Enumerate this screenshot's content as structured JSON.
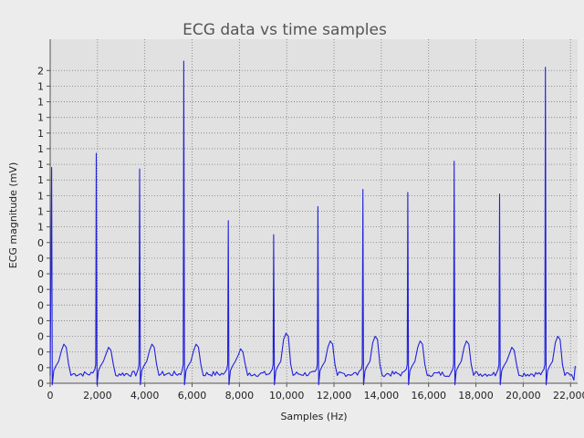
{
  "chart_data": {
    "type": "line",
    "title": "ECG data vs time samples",
    "xlabel": "Samples (Hz)",
    "ylabel": "ECG magnitude (mV)",
    "xlim": [
      0,
      22300
    ],
    "ylim": [
      0,
      2.2
    ],
    "grid": true,
    "legend": "none",
    "colors": {
      "series": "#2020dd",
      "plot_bg": "#e1e1e1",
      "page_bg": "#ececec",
      "grid": "#7a7a7a"
    },
    "x_ticks": [
      {
        "value": 0,
        "label": "0"
      },
      {
        "value": 2000,
        "label": "2,000"
      },
      {
        "value": 4000,
        "label": "4,000"
      },
      {
        "value": 6000,
        "label": "6,000"
      },
      {
        "value": 8000,
        "label": "8,000"
      },
      {
        "value": 10000,
        "label": "10,000"
      },
      {
        "value": 12000,
        "label": "12,000"
      },
      {
        "value": 14000,
        "label": "14,000"
      },
      {
        "value": 16000,
        "label": "16,000"
      },
      {
        "value": 18000,
        "label": "18,000"
      },
      {
        "value": 20000,
        "label": "20,000"
      },
      {
        "value": 22000,
        "label": "22,000"
      }
    ],
    "y_ticks": [
      {
        "value": 0.0,
        "label": "0"
      },
      {
        "value": 0.1,
        "label": "0"
      },
      {
        "value": 0.2,
        "label": "0"
      },
      {
        "value": 0.3,
        "label": "0"
      },
      {
        "value": 0.4,
        "label": "0"
      },
      {
        "value": 0.5,
        "label": "0"
      },
      {
        "value": 0.6,
        "label": "0"
      },
      {
        "value": 0.7,
        "label": "0"
      },
      {
        "value": 0.8,
        "label": "0"
      },
      {
        "value": 0.9,
        "label": "0"
      },
      {
        "value": 1.0,
        "label": "1"
      },
      {
        "value": 1.1,
        "label": "1"
      },
      {
        "value": 1.2,
        "label": "1"
      },
      {
        "value": 1.3,
        "label": "1"
      },
      {
        "value": 1.4,
        "label": "1"
      },
      {
        "value": 1.5,
        "label": "1"
      },
      {
        "value": 1.6,
        "label": "1"
      },
      {
        "value": 1.7,
        "label": "1"
      },
      {
        "value": 1.8,
        "label": "1"
      },
      {
        "value": 1.9,
        "label": "1"
      },
      {
        "value": 2.0,
        "label": "2"
      }
    ],
    "series": [
      {
        "beats": [
          {
            "r": 60,
            "peak": 1.38
          },
          {
            "r": 1950,
            "peak": 1.47
          },
          {
            "r": 3780,
            "peak": 1.37
          },
          {
            "r": 5650,
            "peak": 2.06
          },
          {
            "r": 7530,
            "peak": 1.04
          },
          {
            "r": 9450,
            "peak": 0.95
          },
          {
            "r": 11320,
            "peak": 1.13
          },
          {
            "r": 13220,
            "peak": 1.24
          },
          {
            "r": 15120,
            "peak": 1.22
          },
          {
            "r": 17080,
            "peak": 1.42
          },
          {
            "r": 19000,
            "peak": 1.21
          },
          {
            "r": 20940,
            "peak": 2.02
          }
        ],
        "baseline": 0.06,
        "t_wave_peaks": [
          0.25,
          0.23,
          0.25,
          0.25,
          0.22,
          0.32,
          0.27,
          0.3,
          0.27,
          0.27,
          0.23,
          0.3
        ],
        "end": {
          "x": 22200,
          "y": 0.11
        }
      }
    ]
  }
}
